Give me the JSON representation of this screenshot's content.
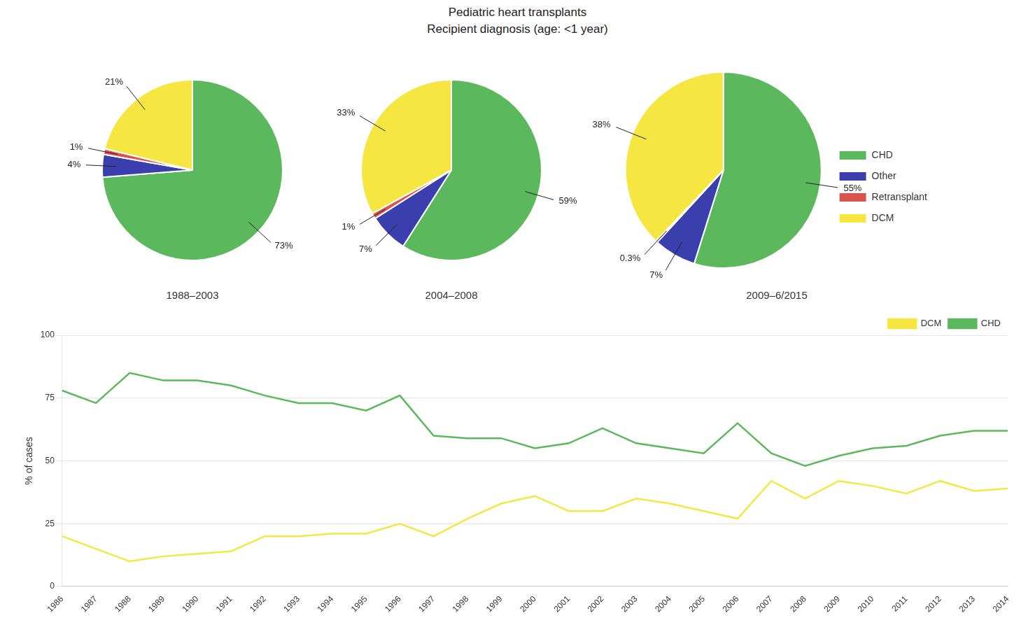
{
  "title": "Pediatric heart transplants",
  "subtitle": "Recipient diagnosis (age: <1 year)",
  "chart_data": [
    {
      "type": "pie",
      "title": "1988–2003",
      "categories": [
        "CHD",
        "Other",
        "Retransplant",
        "DCM"
      ],
      "values": [
        73,
        4,
        1,
        21
      ],
      "value_labels": [
        "73%",
        "4%",
        "1%",
        "21%"
      ],
      "colors": [
        "#5cb85c",
        "#3a3fad",
        "#d9534f",
        "#f5e642"
      ],
      "data_labels": true
    },
    {
      "type": "pie",
      "title": "2004–2008",
      "categories": [
        "CHD",
        "Other",
        "Retransplant",
        "DCM"
      ],
      "values": [
        59,
        7,
        1,
        33
      ],
      "value_labels": [
        "59%",
        "7%",
        "1%",
        "33%"
      ],
      "colors": [
        "#5cb85c",
        "#3a3fad",
        "#d9534f",
        "#f5e642"
      ],
      "data_labels": true
    },
    {
      "type": "pie",
      "title": "2009–6/2015",
      "categories": [
        "CHD",
        "Other",
        "Retransplant",
        "DCM"
      ],
      "values": [
        55,
        7,
        0.3,
        38
      ],
      "value_labels": [
        "55%",
        "7%",
        "0.3%",
        "38%"
      ],
      "colors": [
        "#5cb85c",
        "#3a3fad",
        "#d9534f",
        "#f5e642"
      ],
      "data_labels": true,
      "legend": "right"
    },
    {
      "type": "line",
      "categories": [
        "1986",
        "1987",
        "1988",
        "1989",
        "1990",
        "1991",
        "1992",
        "1993",
        "1994",
        "1995",
        "1996",
        "1997",
        "1998",
        "1999",
        "2000",
        "2001",
        "2002",
        "2003",
        "2004",
        "2005",
        "2006",
        "2007",
        "2008",
        "2009",
        "2010",
        "2011",
        "2012",
        "2013",
        "2014"
      ],
      "series": [
        {
          "name": "DCM",
          "color": "#f5e642",
          "values": [
            20,
            15,
            10,
            12,
            13,
            14,
            20,
            20,
            21,
            21,
            25,
            20,
            27,
            33,
            36,
            30,
            30,
            35,
            33,
            30,
            27,
            42,
            35,
            42,
            40,
            37,
            42,
            38,
            39
          ]
        },
        {
          "name": "CHD",
          "color": "#5cb85c",
          "values": [
            78,
            73,
            85,
            82,
            82,
            80,
            76,
            73,
            73,
            70,
            76,
            60,
            59,
            59,
            55,
            57,
            63,
            57,
            55,
            53,
            65,
            53,
            48,
            52,
            55,
            56,
            60,
            62,
            62
          ]
        }
      ],
      "y_label": "% of cases",
      "ylim": [
        0,
        100
      ],
      "yticks": [
        0,
        25,
        50,
        75,
        100
      ],
      "grid": true,
      "legend": "upper right"
    }
  ]
}
